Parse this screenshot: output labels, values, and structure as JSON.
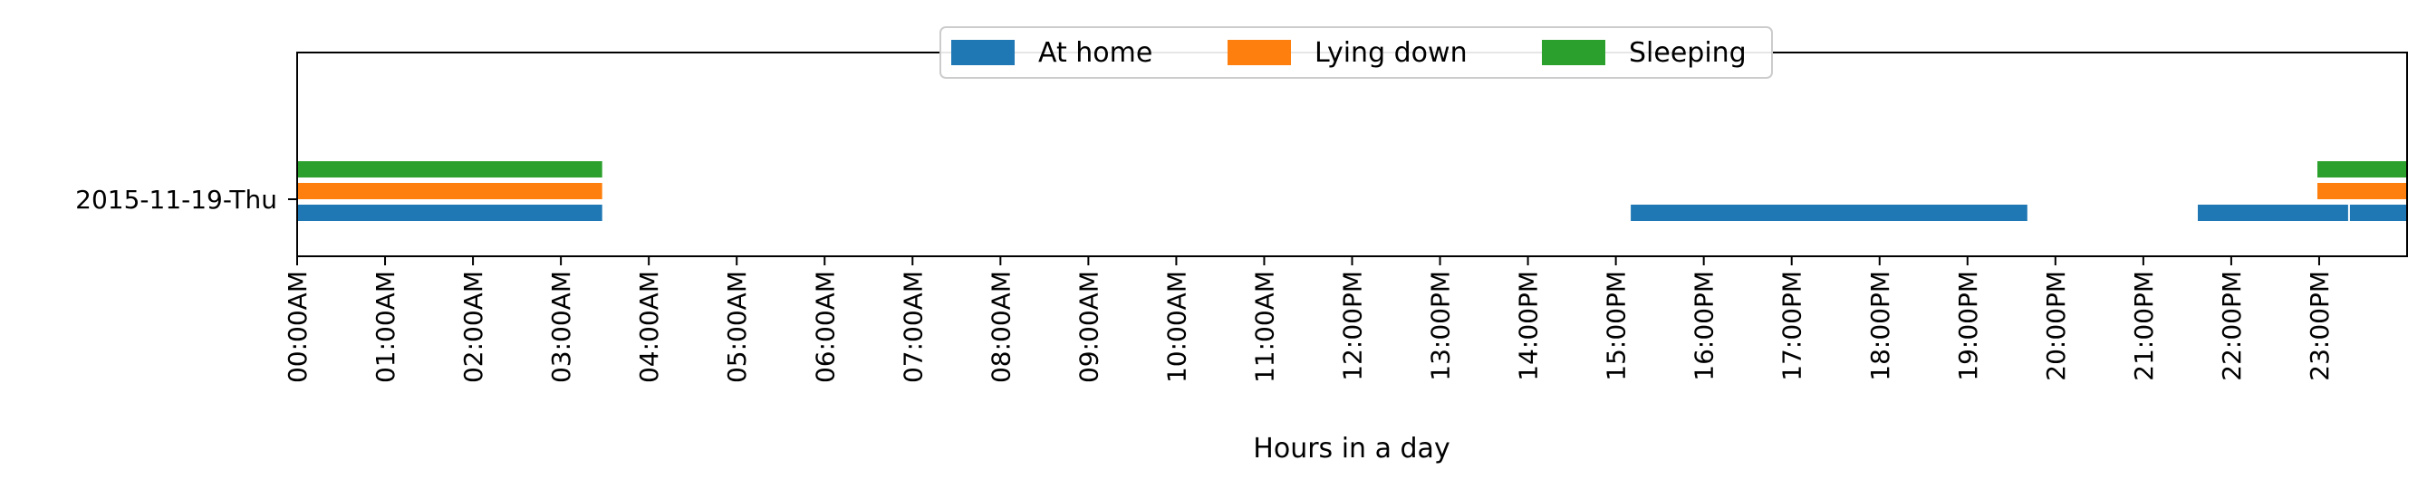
{
  "chart_data": {
    "type": "bar",
    "orientation": "horizontal-timeline",
    "xlabel": "Hours in a day",
    "ylabel": "",
    "title": "",
    "xlim": [
      0,
      24
    ],
    "x_ticks": [
      {
        "value": 0,
        "label": "00:00AM"
      },
      {
        "value": 1,
        "label": "01:00AM"
      },
      {
        "value": 2,
        "label": "02:00AM"
      },
      {
        "value": 3,
        "label": "03:00AM"
      },
      {
        "value": 4,
        "label": "04:00AM"
      },
      {
        "value": 5,
        "label": "05:00AM"
      },
      {
        "value": 6,
        "label": "06:00AM"
      },
      {
        "value": 7,
        "label": "07:00AM"
      },
      {
        "value": 8,
        "label": "08:00AM"
      },
      {
        "value": 9,
        "label": "09:00AM"
      },
      {
        "value": 10,
        "label": "10:00AM"
      },
      {
        "value": 11,
        "label": "11:00AM"
      },
      {
        "value": 12,
        "label": "12:00PM"
      },
      {
        "value": 13,
        "label": "13:00PM"
      },
      {
        "value": 14,
        "label": "14:00PM"
      },
      {
        "value": 15,
        "label": "15:00PM"
      },
      {
        "value": 16,
        "label": "16:00PM"
      },
      {
        "value": 17,
        "label": "17:00PM"
      },
      {
        "value": 18,
        "label": "18:00PM"
      },
      {
        "value": 19,
        "label": "19:00PM"
      },
      {
        "value": 20,
        "label": "20:00PM"
      },
      {
        "value": 21,
        "label": "21:00PM"
      },
      {
        "value": 22,
        "label": "22:00PM"
      },
      {
        "value": 23,
        "label": "23:00PM"
      }
    ],
    "categories": [
      "2015-11-19-Thu"
    ],
    "legend": {
      "placement": "upper-center",
      "columns": 3
    },
    "series": [
      {
        "name": "At home",
        "color": "#1f77b4",
        "intervals": [
          [
            0,
            3.47
          ],
          [
            15.17,
            19.68
          ],
          [
            21.62,
            23.33
          ],
          [
            23.35,
            24
          ]
        ]
      },
      {
        "name": "Lying down",
        "color": "#ff7f0e",
        "intervals": [
          [
            0,
            3.47
          ],
          [
            22.98,
            24
          ]
        ]
      },
      {
        "name": "Sleeping",
        "color": "#2ca02c",
        "intervals": [
          [
            0,
            3.47
          ],
          [
            22.98,
            24
          ]
        ]
      }
    ]
  }
}
